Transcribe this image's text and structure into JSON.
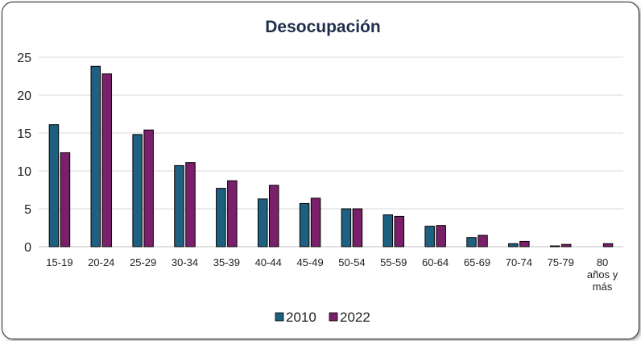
{
  "chart_data": {
    "type": "bar",
    "title": "Desocupación",
    "xlabel": "",
    "ylabel": "",
    "ylim": [
      0,
      25
    ],
    "yticks": [
      0,
      5,
      10,
      15,
      20,
      25
    ],
    "grid": true,
    "legend": "bottom",
    "categories": [
      "15-19",
      "20-24",
      "25-29",
      "30-34",
      "35-39",
      "40-44",
      "45-49",
      "50-54",
      "55-59",
      "60-64",
      "65-69",
      "70-74",
      "75-79",
      "80 años y más"
    ],
    "category_lines": [
      [
        "15-19"
      ],
      [
        "20-24"
      ],
      [
        "25-29"
      ],
      [
        "30-34"
      ],
      [
        "35-39"
      ],
      [
        "40-44"
      ],
      [
        "45-49"
      ],
      [
        "50-54"
      ],
      [
        "55-59"
      ],
      [
        "60-64"
      ],
      [
        "65-69"
      ],
      [
        "70-74"
      ],
      [
        "75-79"
      ],
      [
        "80",
        "años y",
        "más"
      ]
    ],
    "series": [
      {
        "name": "2010",
        "color": "#1e6080",
        "values": [
          16.1,
          23.8,
          14.8,
          10.7,
          7.7,
          6.3,
          5.7,
          5.0,
          4.2,
          2.7,
          1.2,
          0.4,
          0.1,
          0.0
        ]
      },
      {
        "name": "2022",
        "color": "#7a1f6a",
        "values": [
          12.4,
          22.8,
          15.4,
          11.1,
          8.7,
          8.1,
          6.4,
          5.0,
          4.0,
          2.8,
          1.5,
          0.7,
          0.3,
          0.4
        ]
      }
    ]
  }
}
